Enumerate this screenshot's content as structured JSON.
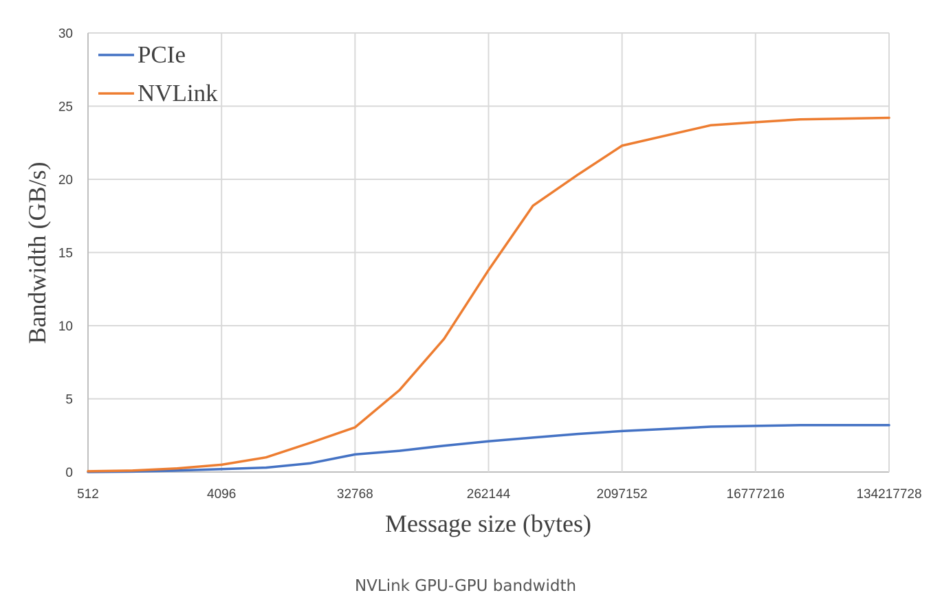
{
  "caption": "NVLink GPU-GPU bandwidth",
  "chart_data": {
    "type": "line",
    "xlabel": "Message size (bytes)",
    "ylabel": "Bandwidth (GB/s)",
    "x": [
      512,
      1024,
      2048,
      4096,
      8192,
      16384,
      32768,
      65536,
      131072,
      262144,
      524288,
      1048576,
      2097152,
      4194304,
      8388608,
      16777216,
      33554432,
      67108864,
      134217728
    ],
    "x_tick_labels": [
      "512",
      "4096",
      "32768",
      "262144",
      "2097152",
      "16777216",
      "134217728"
    ],
    "x_ticks": [
      512,
      4096,
      32768,
      262144,
      2097152,
      16777216,
      134217728
    ],
    "x_scale": "log2",
    "ylim": [
      0,
      30
    ],
    "y_ticks": [
      0,
      5,
      10,
      15,
      20,
      25,
      30
    ],
    "grid": true,
    "legend": "top-left",
    "series": [
      {
        "name": "PCIe",
        "color": "#4472c4",
        "values": [
          0.0,
          0.03,
          0.1,
          0.2,
          0.3,
          0.6,
          1.2,
          1.45,
          1.8,
          2.1,
          2.35,
          2.6,
          2.8,
          2.95,
          3.1,
          3.15,
          3.2,
          3.2,
          3.2
        ]
      },
      {
        "name": "NVLink",
        "color": "#ed7d31",
        "values": [
          0.05,
          0.1,
          0.25,
          0.5,
          1.0,
          2.0,
          3.05,
          5.6,
          9.1,
          13.8,
          18.2,
          20.3,
          22.3,
          23.0,
          23.7,
          23.9,
          24.1,
          24.15,
          24.2
        ]
      }
    ]
  }
}
